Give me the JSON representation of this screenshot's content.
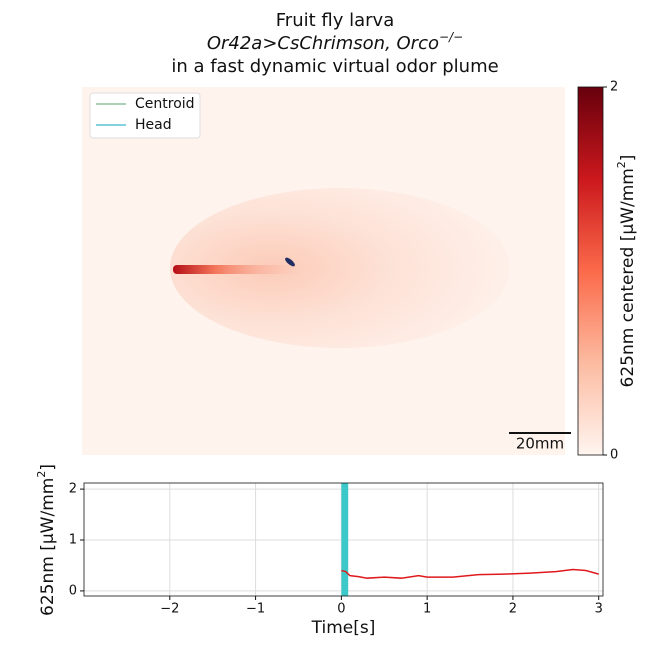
{
  "chart_data": [
    {
      "type": "heatmap",
      "title": [
        "Fruit fly larva",
        [
          "Or42a>CsChrimson, Orco",
          "−/−"
        ],
        "in a fast dynamic virtual odor plume"
      ],
      "legend": "upper left",
      "series": [
        {
          "name": "Centroid",
          "color": "#8fc09a"
        },
        {
          "name": "Head",
          "color": "#5cc4d4"
        }
      ],
      "colorbar": {
        "label": [
          "625nm centered [μW/mm",
          "2",
          "]"
        ],
        "clim": [
          0,
          2
        ],
        "ticks": [
          0,
          2
        ],
        "colors": [
          "#fff5f0",
          "#fcbba1",
          "#fb6a4a",
          "#cb181d",
          "#67000d"
        ]
      },
      "scale_bar": "20mm"
    },
    {
      "type": "line",
      "xlabel": "Time[s]",
      "ylabel": [
        "625nm [μW/mm",
        "2",
        "]"
      ],
      "x": [
        0,
        0.05,
        0.1,
        0.2,
        0.3,
        0.5,
        0.7,
        0.9,
        1.0,
        1.3,
        1.6,
        1.9,
        2.2,
        2.5,
        2.7,
        2.85,
        3.0
      ],
      "series": [
        {
          "color": "#e0191c",
          "values": [
            0.4,
            0.38,
            0.3,
            0.28,
            0.25,
            0.27,
            0.25,
            0.3,
            0.27,
            0.27,
            0.32,
            0.33,
            0.35,
            0.38,
            0.42,
            0.4,
            0.33
          ]
        }
      ],
      "xlim": [
        -3,
        3.05
      ],
      "ylim": [
        -0.1,
        2.12
      ],
      "xticks": [
        {
          "value": -2,
          "label": "−2"
        },
        {
          "value": -1,
          "label": "−1"
        },
        0,
        1,
        2,
        3
      ],
      "yticks": [
        0,
        1,
        2
      ],
      "grid": true,
      "span": {
        "x": [
          0,
          0.08
        ],
        "color": "#3cc8c8"
      }
    }
  ]
}
